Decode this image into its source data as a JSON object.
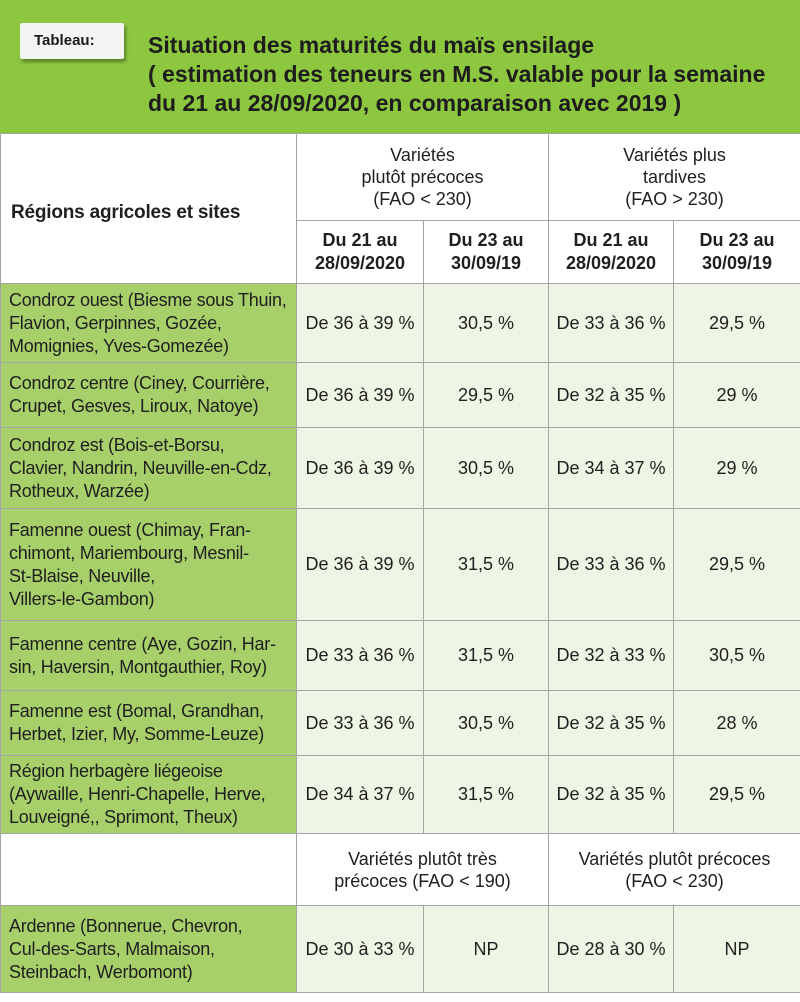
{
  "header": {
    "label": "Tableau:",
    "title": "Situation des maturités du maïs ensilage\n( estimation des teneurs en M.S. valable pour la semaine\ndu 21 au 28/09/2020, en comparaison avec 2019 )"
  },
  "table": {
    "region_header": "Régions agricoles et sites",
    "groups": [
      "Variétés\nplutôt précoces\n(FAO < 230)",
      "Variétés plus\ntardives\n(FAO > 230)"
    ],
    "periods": [
      "Du 21 au\n28/09/2020",
      "Du 23 au\n30/09/19",
      "Du 21 au\n28/09/2020",
      "Du 23 au\n30/09/19"
    ],
    "rows": [
      {
        "region": "Condroz ouest (Biesme sous Thuin,\nFlavion, Gerpinnes, Gozée,\nMomignies, Yves-Gomezée)",
        "values": [
          "De 36 à 39 %",
          "30,5 %",
          "De 33 à 36 %",
          "29,5 %"
        ]
      },
      {
        "region": "Condroz centre (Ciney, Courrière,\nCrupet, Gesves, Liroux, Natoye)",
        "values": [
          "De 36 à 39 %",
          "29,5 %",
          "De 32 à 35 %",
          "29 %"
        ]
      },
      {
        "region": "Condroz est (Bois-et-Borsu,\nClavier, Nandrin, Neuville-en-Cdz,\nRotheux, Warzée)",
        "values": [
          "De 36 à 39 %",
          "30,5 %",
          "De 34 à 37 %",
          "29 %"
        ]
      },
      {
        "region": "Famenne ouest (Chimay, Fran-\nchimont, Mariembourg, Mesnil-\nSt-Blaise, Neuville,\nVillers-le-Gambon)",
        "values": [
          "De 36 à 39 %",
          "31,5 %",
          "De 33 à 36 %",
          "29,5 %"
        ]
      },
      {
        "region": "Famenne centre (Aye, Gozin, Har-\nsin, Haversin, Montgauthier, Roy)",
        "values": [
          "De 33 à 36 %",
          "31,5 %",
          "De 32 à 33 %",
          "30,5 %"
        ]
      },
      {
        "region": "Famenne est (Bomal, Grandhan,\nHerbet, Izier, My, Somme-Leuze)",
        "values": [
          "De 33 à 36 %",
          "30,5 %",
          "De 32 à 35 %",
          "28 %"
        ]
      },
      {
        "region": "Région herbagère liégeoise\n(Aywaille, Henri-Chapelle, Herve,\nLouveigné,, Sprimont, Theux)",
        "values": [
          "De 34 à 37 %",
          "31,5 %",
          "De 32 à 35 %",
          "29,5 %"
        ]
      }
    ],
    "ardenne_groups": [
      "Variétés plutôt très\nprécoces (FAO < 190)",
      "Variétés plutôt précoces\n(FAO < 230)"
    ],
    "ardenne": {
      "region": "Ardenne (Bonnerue, Chevron,\nCul-des-Sarts, Malmaison,\nSteinbach, Werbomont)",
      "values": [
        "De 30 à 33 %",
        "NP",
        "De 28 à 30 %",
        "NP"
      ]
    }
  },
  "colors": {
    "header_band": "#8dc63f",
    "region_cell": "#a7d06b",
    "value_cell": "#eef5e4",
    "border": "#a4a4a4"
  }
}
